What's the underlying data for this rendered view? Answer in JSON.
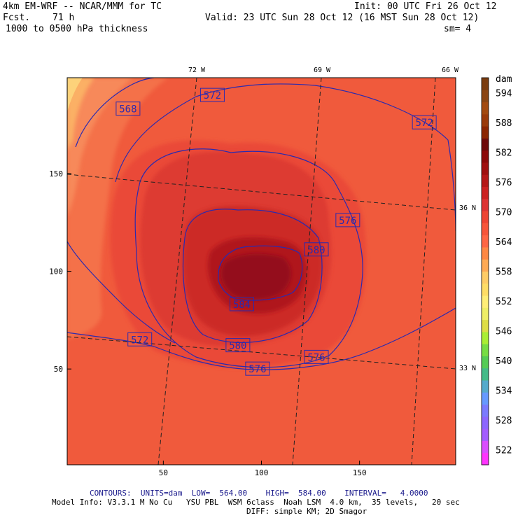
{
  "header": {
    "model": "4km EM-WRF -- NCAR/MMM for TC",
    "init": "Init: 00 UTC Fri 26 Oct 12",
    "fcst_label": "Fcst.",
    "fcst_hours": "71 h",
    "valid": "Valid: 23 UTC Sun 28 Oct 12 (16 MST Sun 28 Oct 12)",
    "field": "1000 to 0500 hPa thickness",
    "smoothing": "sm= 4"
  },
  "colorbar": {
    "units": "dam",
    "labels": [
      "594",
      "588",
      "582",
      "576",
      "570",
      "564",
      "558",
      "552",
      "546",
      "540",
      "534",
      "528",
      "522"
    ],
    "colors": [
      "#ff33ff",
      "#d94cff",
      "#a35cff",
      "#8c66ff",
      "#7a7aff",
      "#6699ff",
      "#55aacc",
      "#44bb88",
      "#55cc55",
      "#77dd44",
      "#aaee33",
      "#dddd44",
      "#eeee66",
      "#ffee77",
      "#ffdd66",
      "#ffcc66",
      "#ffaa55",
      "#ff8844",
      "#ff6644",
      "#f7553a",
      "#ee4433",
      "#dd3333",
      "#cc2222",
      "#b51818",
      "#a01010",
      "#8c0a0a",
      "#6e0a0a",
      "#8b2500",
      "#9a3a0a",
      "#a34a10",
      "#8b4513",
      "#7a3c10"
    ]
  },
  "footer": {
    "contours_line": "CONTOURS:  UNITS=dam  LOW=  564.00    HIGH=  584.00    INTERVAL=   4.0000",
    "model_info": "Model Info: V3.3.1 M No Cu   YSU PBL  WSM 6class  Noah LSM  4.0 km,  35 levels,   20 sec",
    "diff": "DIFF: simple KM; 2D Smagor"
  },
  "chart_data": {
    "type": "heatmap",
    "title": "1000 to 0500 hPa thickness",
    "units": "dam",
    "x_ticks": [
      50,
      100,
      150
    ],
    "y_ticks": [
      50,
      100,
      150
    ],
    "grid_range": {
      "x": [
        1,
        199
      ],
      "y": [
        1,
        199
      ]
    },
    "longitude_labels": [
      "72 W",
      "69 W",
      "66 W"
    ],
    "latitude_labels": [
      "36 N",
      "33 N"
    ],
    "colorbar_range": [
      519,
      597
    ],
    "colorbar_ticks": [
      594,
      588,
      582,
      576,
      570,
      564,
      558,
      552,
      546,
      540,
      534,
      528,
      522
    ],
    "contour_levels": [
      564,
      568,
      572,
      576,
      580,
      584
    ],
    "contour_labels": [
      {
        "text": "572",
        "x": 75,
        "y": 190
      },
      {
        "text": "568",
        "x": 32,
        "y": 183
      },
      {
        "text": "572",
        "x": 183,
        "y": 176
      },
      {
        "text": "576",
        "x": 144,
        "y": 126
      },
      {
        "text": "580",
        "x": 128,
        "y": 111
      },
      {
        "text": "584",
        "x": 90,
        "y": 83
      },
      {
        "text": "580",
        "x": 88,
        "y": 62
      },
      {
        "text": "572",
        "x": 38,
        "y": 65
      },
      {
        "text": "576",
        "x": 128,
        "y": 56
      },
      {
        "text": "576",
        "x": 98,
        "y": 50
      }
    ],
    "center": {
      "x": 94,
      "y": 101
    },
    "max_value": 588,
    "grid": false
  }
}
